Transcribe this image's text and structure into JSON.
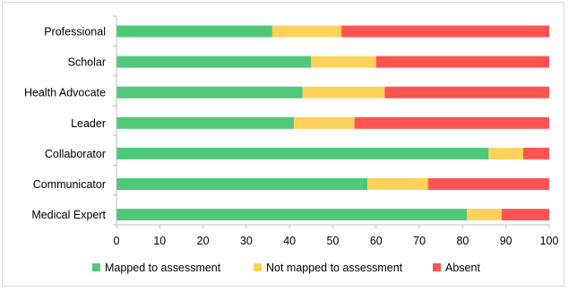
{
  "chart_data": {
    "type": "bar",
    "orientation": "horizontal",
    "stacked": true,
    "categories": [
      "Professional",
      "Scholar",
      "Health Advocate",
      "Leader",
      "Collaborator",
      "Communicator",
      "Medical Expert"
    ],
    "series": [
      {
        "name": "Mapped to assessment",
        "color": "#4fc87a",
        "values": [
          36,
          45,
          43,
          41,
          86,
          58,
          81
        ]
      },
      {
        "name": "Not mapped to assessment",
        "color": "#fdd15a",
        "values": [
          16,
          15,
          19,
          14,
          8,
          14,
          8
        ]
      },
      {
        "name": "Absent",
        "color": "#ff5451",
        "values": [
          48,
          40,
          38,
          45,
          6,
          28,
          11
        ]
      }
    ],
    "xlim": [
      0,
      100
    ],
    "xticks": [
      "0",
      "10",
      "20",
      "30",
      "40",
      "50",
      "60",
      "70",
      "80",
      "90",
      "100"
    ],
    "title": "",
    "xlabel": "",
    "ylabel": "",
    "grid": false,
    "legend_position": "bottom"
  }
}
